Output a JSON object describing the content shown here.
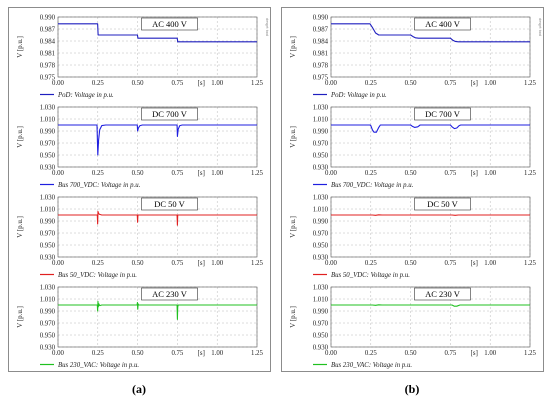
{
  "panels": [
    {
      "caption": "(a)",
      "side_label": "dmgrt tool",
      "charts": [
        {
          "key": "ac400",
          "title": "AC 400 V",
          "ylabel": "V [p.u.]",
          "xunit": "[s]",
          "yticks": [
            "0.990",
            "0.987",
            "0.984",
            "0.981",
            "0.978",
            "0.975"
          ],
          "xticks": [
            "0.00",
            "0.25",
            "0.50",
            "0.75",
            "1.00",
            "1.25"
          ],
          "legend": "PoD: Voltage in p.u."
        },
        {
          "key": "dc700",
          "title": "DC 700 V",
          "ylabel": "V [p.u.]",
          "xunit": "[s]",
          "yticks": [
            "1.030",
            "1.010",
            "0.990",
            "0.970",
            "0.950",
            "0.930"
          ],
          "xticks": [
            "0.00",
            "0.25",
            "0.50",
            "0.75",
            "1.00",
            "1.25"
          ],
          "legend": "Bus 700_VDC: Voltage in p.u."
        },
        {
          "key": "dc50",
          "title": "DC 50 V",
          "ylabel": "V [p.u.]",
          "xunit": "[s]",
          "yticks": [
            "1.030",
            "1.010",
            "0.990",
            "0.970",
            "0.950",
            "0.930"
          ],
          "xticks": [
            "0.00",
            "0.25",
            "0.50",
            "0.75",
            "1.00",
            "1.25"
          ],
          "legend": "Bus 50_VDC: Voltage in p.u."
        },
        {
          "key": "ac230",
          "title": "AC 230 V",
          "ylabel": "V [p.u.]",
          "xunit": "[s]",
          "yticks": [
            "1.030",
            "1.010",
            "0.990",
            "0.970",
            "0.950",
            "0.930"
          ],
          "xticks": [
            "0.00",
            "0.25",
            "0.50",
            "0.75",
            "1.00",
            "1.25"
          ],
          "legend": "Bus 230_VAC: Voltage in p.u."
        }
      ]
    },
    {
      "caption": "(b)",
      "side_label": "dmgrt tool",
      "charts": [
        {
          "key": "ac400",
          "title": "AC 400 V",
          "ylabel": "V [p.u.]",
          "xunit": "[s]",
          "yticks": [
            "0.990",
            "0.987",
            "0.984",
            "0.981",
            "0.978",
            "0.975"
          ],
          "xticks": [
            "0.00",
            "0.25",
            "0.50",
            "0.75",
            "1.00",
            "1.25"
          ],
          "legend": "PoD: Voltage in p.u."
        },
        {
          "key": "dc700",
          "title": "DC 700 V",
          "ylabel": "V [p.u.]",
          "xunit": "[s]",
          "yticks": [
            "1.030",
            "1.010",
            "0.990",
            "0.970",
            "0.950",
            "0.930"
          ],
          "xticks": [
            "0.00",
            "0.25",
            "0.50",
            "0.75",
            "1.00",
            "1.25"
          ],
          "legend": "Bus 700_VDC: Voltage in p.u."
        },
        {
          "key": "dc50",
          "title": "DC 50 V",
          "ylabel": "V [p.u.]",
          "xunit": "[s]",
          "yticks": [
            "1.030",
            "1.010",
            "0.990",
            "0.970",
            "0.950",
            "0.930"
          ],
          "xticks": [
            "0.00",
            "0.25",
            "0.50",
            "0.75",
            "1.00",
            "1.25"
          ],
          "legend": "Bus 50_VDC: Voltage in p.u."
        },
        {
          "key": "ac230",
          "title": "AC 230 V",
          "ylabel": "V [p.u.]",
          "xunit": "[s]",
          "yticks": [
            "1.030",
            "1.010",
            "0.990",
            "0.970",
            "0.950",
            "0.930"
          ],
          "xticks": [
            "0.00",
            "0.25",
            "0.50",
            "0.75",
            "1.00",
            "1.25"
          ],
          "legend": "Bus 230_VAC: Voltage in p.u."
        }
      ]
    }
  ],
  "colors": {
    "ac400": "#1f1fbf",
    "dc700": "#1f1fdf",
    "dc50": "#e02020",
    "ac230": "#20c020",
    "grid": "#b8b8b8"
  },
  "chart_data": [
    {
      "type": "line",
      "panel": "(a)",
      "title": "AC 400 V",
      "ylabel": "V [p.u.]",
      "xlabel": "[s]",
      "xlim": [
        0,
        1.25
      ],
      "ylim": [
        0.975,
        0.99
      ],
      "grid": true,
      "legend_position": "bottom-left",
      "series": [
        {
          "name": "PoD: Voltage in p.u.",
          "x": [
            0,
            0.249,
            0.252,
            0.499,
            0.502,
            0.749,
            0.752,
            1.25
          ],
          "y": [
            0.9883,
            0.9883,
            0.9855,
            0.9855,
            0.9847,
            0.9847,
            0.9838,
            0.9838
          ]
        }
      ]
    },
    {
      "type": "line",
      "panel": "(a)",
      "title": "DC 700 V",
      "ylabel": "V [p.u.]",
      "xlabel": "[s]",
      "xlim": [
        0,
        1.25
      ],
      "ylim": [
        0.93,
        1.03
      ],
      "grid": true,
      "legend_position": "bottom-left",
      "series": [
        {
          "name": "Bus 700_VDC: Voltage in p.u.",
          "x": [
            0,
            0.245,
            0.25,
            0.255,
            0.262,
            0.275,
            0.3,
            0.498,
            0.5,
            0.505,
            0.515,
            0.53,
            0.748,
            0.75,
            0.755,
            0.765,
            0.78,
            1.25
          ],
          "y": [
            1.0,
            1.0,
            0.95,
            0.975,
            0.992,
            0.999,
            1.0,
            1.0,
            0.99,
            0.995,
            0.999,
            1.0,
            1.0,
            0.981,
            0.993,
            0.999,
            1.0,
            1.0
          ]
        }
      ]
    },
    {
      "type": "line",
      "panel": "(a)",
      "title": "DC 50 V",
      "ylabel": "V [p.u.]",
      "xlabel": "[s]",
      "xlim": [
        0,
        1.25
      ],
      "ylim": [
        0.93,
        1.03
      ],
      "grid": true,
      "legend_position": "bottom-left",
      "series": [
        {
          "name": "Bus 50_VDC: Voltage in p.u.",
          "x": [
            0,
            0.247,
            0.249,
            0.251,
            0.253,
            0.256,
            0.262,
            0.275,
            0.498,
            0.5,
            0.502,
            0.506,
            0.748,
            0.75,
            0.752,
            0.756,
            1.25
          ],
          "y": [
            1.0,
            1.0,
            0.985,
            1.006,
            1.004,
            1.002,
            1.001,
            1.0,
            1.0,
            0.988,
            1.0,
            1.0,
            1.0,
            0.983,
            1.0,
            1.0,
            1.0
          ]
        }
      ]
    },
    {
      "type": "line",
      "panel": "(a)",
      "title": "AC 230 V",
      "ylabel": "V [p.u.]",
      "xlabel": "[s]",
      "xlim": [
        0,
        1.25
      ],
      "ylim": [
        0.93,
        1.03
      ],
      "grid": true,
      "legend_position": "bottom-left",
      "series": [
        {
          "name": "Bus 230_VAC: Voltage in p.u.",
          "x": [
            0,
            0.247,
            0.249,
            0.251,
            0.253,
            0.256,
            0.262,
            0.275,
            0.497,
            0.499,
            0.501,
            0.503,
            0.506,
            0.748,
            0.75,
            0.752,
            0.755,
            1.25
          ],
          "y": [
            1.0,
            1.0,
            0.99,
            1.006,
            0.997,
            1.002,
            0.999,
            1.0,
            1.0,
            1.004,
            0.993,
            1.002,
            1.0,
            1.0,
            0.976,
            0.997,
            1.0,
            1.0
          ]
        }
      ]
    },
    {
      "type": "line",
      "panel": "(b)",
      "title": "AC 400 V",
      "ylabel": "V [p.u.]",
      "xlabel": "[s]",
      "xlim": [
        0,
        1.25
      ],
      "ylim": [
        0.975,
        0.99
      ],
      "grid": true,
      "legend_position": "bottom-left",
      "series": [
        {
          "name": "PoD: Voltage in p.u.",
          "x": [
            0,
            0.245,
            0.26,
            0.28,
            0.3,
            0.5,
            0.515,
            0.53,
            0.55,
            0.75,
            0.765,
            0.78,
            0.8,
            1.25
          ],
          "y": [
            0.9883,
            0.9883,
            0.9874,
            0.986,
            0.9855,
            0.9855,
            0.9851,
            0.9848,
            0.9847,
            0.9847,
            0.9842,
            0.9839,
            0.9838,
            0.9838
          ]
        }
      ]
    },
    {
      "type": "line",
      "panel": "(b)",
      "title": "DC 700 V",
      "ylabel": "V [p.u.]",
      "xlabel": "[s]",
      "xlim": [
        0,
        1.25
      ],
      "ylim": [
        0.93,
        1.03
      ],
      "grid": true,
      "legend_position": "bottom-left",
      "series": [
        {
          "name": "Bus 700_VDC: Voltage in p.u.",
          "x": [
            0,
            0.245,
            0.25,
            0.26,
            0.27,
            0.285,
            0.3,
            0.31,
            0.5,
            0.51,
            0.525,
            0.545,
            0.56,
            0.75,
            0.76,
            0.775,
            0.79,
            0.805,
            0.815,
            1.25
          ],
          "y": [
            1.0,
            1.0,
            0.999,
            0.992,
            0.988,
            0.988,
            0.996,
            1.0,
            1.0,
            0.998,
            0.996,
            0.997,
            1.0,
            1.0,
            0.997,
            0.994,
            0.995,
            0.999,
            1.0,
            1.0
          ]
        }
      ]
    },
    {
      "type": "line",
      "panel": "(b)",
      "title": "DC 50 V",
      "ylabel": "V [p.u.]",
      "xlabel": "[s]",
      "xlim": [
        0,
        1.25
      ],
      "ylim": [
        0.93,
        1.03
      ],
      "grid": true,
      "legend_position": "bottom-left",
      "series": [
        {
          "name": "Bus 50_VDC: Voltage in p.u.",
          "x": [
            0,
            0.26,
            0.28,
            0.3,
            0.32,
            0.76,
            0.78,
            0.8,
            1.25
          ],
          "y": [
            1.0,
            1.0,
            0.9995,
            1.0003,
            1.0,
            1.0,
            0.9995,
            1.0,
            1.0
          ]
        }
      ]
    },
    {
      "type": "line",
      "panel": "(b)",
      "title": "AC 230 V",
      "ylabel": "V [p.u.]",
      "xlabel": "[s]",
      "xlim": [
        0,
        1.25
      ],
      "ylim": [
        0.93,
        1.03
      ],
      "grid": true,
      "legend_position": "bottom-left",
      "series": [
        {
          "name": "Bus 230_VAC: Voltage in p.u.",
          "x": [
            0,
            0.26,
            0.28,
            0.3,
            0.32,
            0.76,
            0.775,
            0.79,
            0.81,
            1.25
          ],
          "y": [
            1.0,
            1.0,
            0.9995,
            1.0003,
            1.0,
            1.0,
            0.998,
            0.998,
            1.0,
            1.0
          ]
        }
      ]
    }
  ]
}
